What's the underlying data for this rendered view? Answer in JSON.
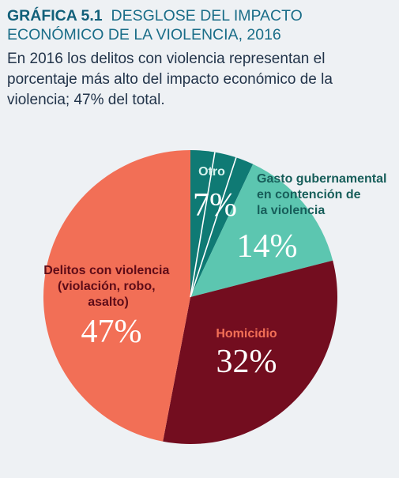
{
  "header": {
    "chart_number": "GRÁFICA 5.1",
    "title": "DESGLOSE DEL IMPACTO ECONÓMICO DE LA VIOLENCIA, 2016",
    "subtitle": "En 2016 los delitos con violencia representan el porcentaje más alto del impacto económico de la violencia; 47% del total."
  },
  "chart_data": {
    "type": "pie",
    "slices": [
      {
        "lines": [
          "Otro"
        ],
        "value": 7,
        "label": "7%",
        "color": "#0f7a74",
        "label_color": "#d8f3ee",
        "pct_color": "#ffffff"
      },
      {
        "lines": [
          "Gasto gubernamental",
          "en contención de",
          "la violencia"
        ],
        "value": 14,
        "label": "14%",
        "color": "#5cc6b0",
        "label_color": "#175e5a",
        "pct_color": "#ffffff"
      },
      {
        "lines": [
          "Homicidio"
        ],
        "value": 32,
        "label": "32%",
        "color": "#730d1f",
        "label_color": "#f26f56",
        "pct_color": "#ffffff"
      },
      {
        "lines": [
          "Delitos con violencia",
          "(violación, robo,",
          "asalto)"
        ],
        "value": 47,
        "label": "47%",
        "color": "#f26f56",
        "label_color": "#5e0c18",
        "pct_color": "#ffffff"
      }
    ]
  }
}
